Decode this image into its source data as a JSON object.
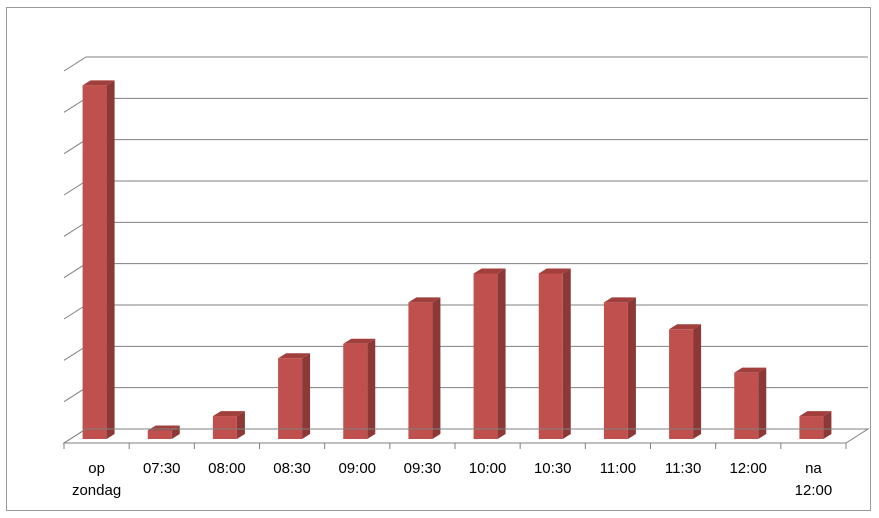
{
  "chart_data": {
    "type": "bar",
    "categories": [
      [
        "op",
        "zondag"
      ],
      [
        "07:30"
      ],
      [
        "08:00"
      ],
      [
        "08:30"
      ],
      [
        "09:00"
      ],
      [
        "09:30"
      ],
      [
        "10:00"
      ],
      [
        "10:30"
      ],
      [
        "11:00"
      ],
      [
        "11:30"
      ],
      [
        "12:00"
      ],
      [
        "na",
        "12:00"
      ]
    ],
    "values": [
      8.7,
      0.35,
      0.7,
      2.1,
      2.45,
      3.45,
      4.15,
      4.15,
      3.45,
      2.8,
      1.75,
      0.7
    ],
    "ylim": [
      0,
      9
    ],
    "y_ticks": 9,
    "grid": true,
    "legend": "none",
    "title": "",
    "xlabel": "",
    "ylabel": "",
    "colors": {
      "bar_front": "#c0504d",
      "bar_side": "#8c3836",
      "bar_top": "#a13f3c",
      "grid": "#808080"
    }
  }
}
